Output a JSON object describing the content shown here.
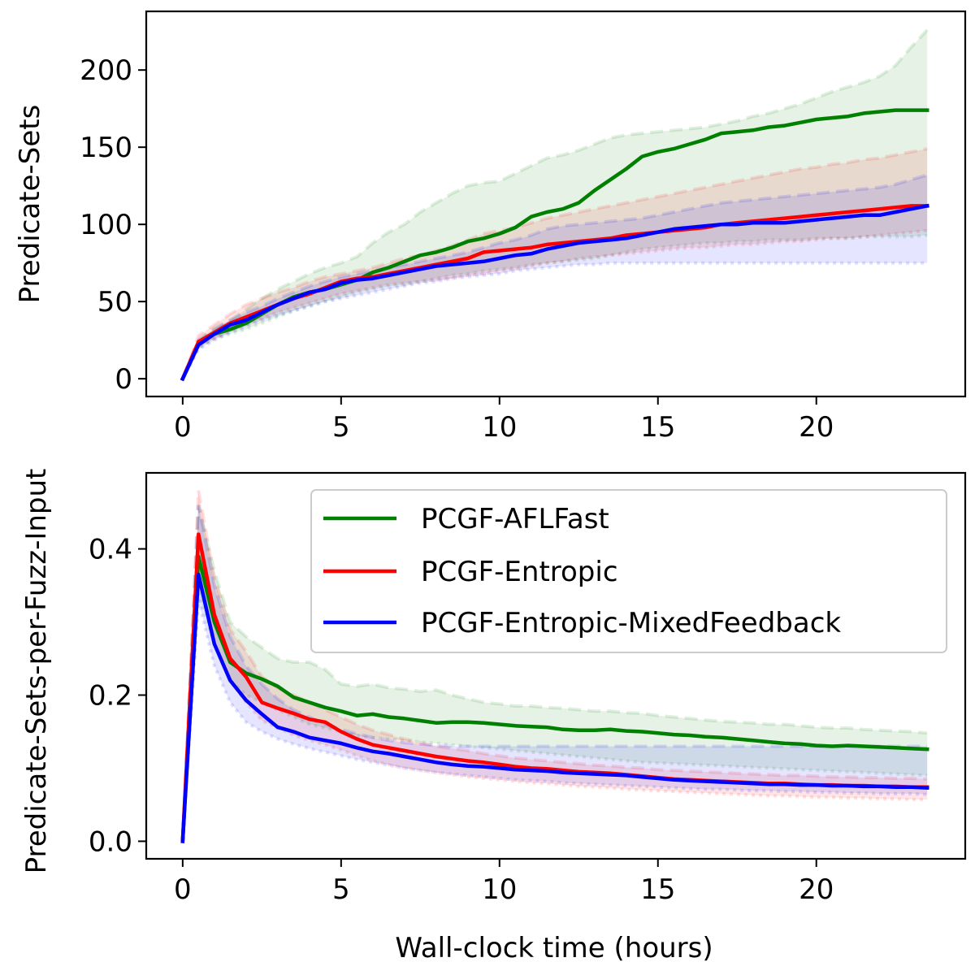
{
  "chart_data": [
    {
      "type": "line",
      "xlabel": "",
      "ylabel": "Predicate-Sets",
      "xlim": [
        -1.15,
        24.7
      ],
      "ylim": [
        -11.5,
        238
      ],
      "xticks": [
        0,
        5,
        10,
        15,
        20
      ],
      "xtick_labels": [
        "0",
        "5",
        "10",
        "15",
        "20"
      ],
      "yticks": [
        0,
        50,
        100,
        150,
        200
      ],
      "ytick_labels": [
        "0",
        "50",
        "100",
        "150",
        "200"
      ],
      "grid": false,
      "legend": "none",
      "x": [
        0,
        0.5,
        1,
        1.5,
        2,
        2.5,
        3,
        3.5,
        4,
        4.5,
        5,
        5.5,
        6,
        6.5,
        7,
        7.5,
        8,
        8.5,
        9,
        9.5,
        10,
        10.5,
        11,
        11.5,
        12,
        12.5,
        13,
        13.5,
        14,
        14.5,
        15,
        15.5,
        16,
        16.5,
        17,
        17.5,
        18,
        18.5,
        19,
        19.5,
        20,
        20.5,
        21,
        21.5,
        22,
        22.5,
        23,
        23.5
      ],
      "series": [
        {
          "name": "PCGF-AFLFast",
          "color": "#008000",
          "values": [
            0,
            23,
            29,
            32,
            36,
            42,
            48,
            53,
            56,
            58,
            61,
            64,
            69,
            72,
            76,
            80,
            82,
            85,
            89,
            91,
            94,
            98,
            105,
            108,
            110,
            114,
            122,
            129,
            136,
            144,
            147,
            149,
            152,
            155,
            159,
            160,
            161,
            163,
            164,
            166,
            168,
            169,
            170,
            172,
            173,
            174,
            174,
            174
          ],
          "upper": [
            0,
            25,
            33,
            38,
            45,
            52,
            58,
            63,
            68,
            72,
            75,
            79,
            88,
            95,
            100,
            108,
            114,
            120,
            125,
            127,
            128,
            133,
            138,
            143,
            145,
            148,
            152,
            156,
            158,
            159,
            160,
            161,
            162,
            163,
            165,
            167,
            170,
            172,
            175,
            178,
            182,
            186,
            189,
            192,
            196,
            203,
            215,
            226
          ],
          "lower": [
            0,
            20,
            26,
            29,
            32,
            36,
            40,
            44,
            47,
            50,
            53,
            56,
            58,
            60,
            61,
            63,
            65,
            67,
            68,
            70,
            71,
            72,
            74,
            75,
            76,
            77,
            78,
            80,
            82,
            84,
            85,
            86,
            87,
            88,
            88,
            89,
            89,
            90,
            90,
            90,
            91,
            91,
            91,
            92,
            92,
            92,
            92,
            93
          ]
        },
        {
          "name": "PCGF-Entropic",
          "color": "#ff0000",
          "values": [
            0,
            24,
            30,
            36,
            40,
            44,
            48,
            52,
            55,
            59,
            63,
            65,
            66,
            68,
            70,
            72,
            74,
            76,
            78,
            82,
            83,
            84,
            85,
            87,
            88,
            89,
            90,
            91,
            93,
            94,
            95,
            96,
            97,
            98,
            100,
            101,
            102,
            103,
            104,
            105,
            106,
            107,
            108,
            109,
            110,
            111,
            112,
            112
          ],
          "upper": [
            0,
            28,
            35,
            42,
            48,
            52,
            56,
            59,
            63,
            66,
            68,
            70,
            72,
            75,
            78,
            80,
            83,
            86,
            90,
            94,
            96,
            98,
            101,
            104,
            106,
            108,
            110,
            112,
            114,
            116,
            118,
            120,
            122,
            124,
            126,
            128,
            130,
            132,
            134,
            136,
            137,
            139,
            140,
            142,
            143,
            145,
            147,
            149
          ],
          "lower": [
            0,
            21,
            26,
            31,
            35,
            39,
            43,
            46,
            49,
            52,
            55,
            57,
            59,
            61,
            62,
            63,
            64,
            65,
            67,
            68,
            70,
            71,
            73,
            75,
            76,
            78,
            79,
            80,
            81,
            82,
            83,
            84,
            85,
            85,
            86,
            87,
            87,
            88,
            89,
            89,
            90,
            91,
            91,
            92,
            93,
            94,
            95,
            96
          ]
        },
        {
          "name": "PCGF-Entropic-MixedFeedback",
          "color": "#0000ff",
          "values": [
            0,
            22,
            29,
            35,
            38,
            43,
            48,
            52,
            56,
            58,
            62,
            64,
            65,
            67,
            69,
            71,
            73,
            74,
            75,
            76,
            78,
            80,
            81,
            84,
            86,
            88,
            89,
            90,
            91,
            93,
            95,
            97,
            98,
            99,
            100,
            100,
            101,
            101,
            101,
            102,
            103,
            104,
            105,
            106,
            106,
            108,
            110,
            112
          ],
          "upper": [
            0,
            25,
            32,
            38,
            43,
            47,
            52,
            56,
            60,
            63,
            66,
            68,
            70,
            72,
            74,
            76,
            78,
            80,
            82,
            85,
            88,
            90,
            93,
            97,
            99,
            100,
            101,
            102,
            103,
            104,
            106,
            108,
            110,
            112,
            114,
            115,
            116,
            117,
            118,
            119,
            120,
            121,
            122,
            123,
            124,
            126,
            129,
            132
          ],
          "lower": [
            0,
            19,
            25,
            30,
            34,
            38,
            41,
            44,
            47,
            50,
            52,
            54,
            56,
            58,
            60,
            62,
            63,
            65,
            66,
            67,
            68,
            70,
            71,
            72,
            73,
            74,
            74,
            75,
            75,
            75,
            75,
            75,
            75,
            75,
            75,
            75,
            75,
            75,
            75,
            75,
            75,
            75,
            75,
            75,
            75,
            75,
            75,
            75
          ]
        }
      ]
    },
    {
      "type": "line",
      "xlabel": "Wall-clock time (hours)",
      "ylabel": "Predicate-Sets-per-Fuzz-Input",
      "xlim": [
        -1.15,
        24.7
      ],
      "ylim": [
        -0.024,
        0.504
      ],
      "xticks": [
        0,
        5,
        10,
        15,
        20
      ],
      "xtick_labels": [
        "0",
        "5",
        "10",
        "15",
        "20"
      ],
      "yticks": [
        0,
        0.2,
        0.4
      ],
      "ytick_labels": [
        "0.0",
        "0.2",
        "0.4"
      ],
      "grid": false,
      "legend": "top-right",
      "x": [
        0,
        0.5,
        1,
        1.5,
        2,
        2.5,
        3,
        3.5,
        4,
        4.5,
        5,
        5.5,
        6,
        6.5,
        7,
        7.5,
        8,
        8.5,
        9,
        9.5,
        10,
        10.5,
        11,
        11.5,
        12,
        12.5,
        13,
        13.5,
        14,
        14.5,
        15,
        15.5,
        16,
        16.5,
        17,
        17.5,
        18,
        18.5,
        19,
        19.5,
        20,
        20.5,
        21,
        21.5,
        22,
        22.5,
        23,
        23.5
      ],
      "series": [
        {
          "name": "PCGF-AFLFast",
          "color": "#008000",
          "values": [
            0,
            0.39,
            0.3,
            0.245,
            0.23,
            0.222,
            0.212,
            0.197,
            0.19,
            0.183,
            0.178,
            0.172,
            0.174,
            0.17,
            0.168,
            0.165,
            0.162,
            0.163,
            0.163,
            0.162,
            0.16,
            0.158,
            0.157,
            0.156,
            0.153,
            0.152,
            0.152,
            0.153,
            0.151,
            0.15,
            0.148,
            0.146,
            0.145,
            0.143,
            0.142,
            0.14,
            0.138,
            0.136,
            0.134,
            0.133,
            0.131,
            0.13,
            0.131,
            0.13,
            0.129,
            0.128,
            0.127,
            0.126
          ],
          "upper": [
            0,
            0.46,
            0.37,
            0.3,
            0.28,
            0.265,
            0.25,
            0.245,
            0.245,
            0.235,
            0.215,
            0.212,
            0.215,
            0.21,
            0.208,
            0.205,
            0.207,
            0.2,
            0.195,
            0.19,
            0.188,
            0.185,
            0.185,
            0.183,
            0.182,
            0.18,
            0.178,
            0.178,
            0.176,
            0.175,
            0.172,
            0.17,
            0.168,
            0.166,
            0.164,
            0.163,
            0.162,
            0.16,
            0.16,
            0.158,
            0.156,
            0.155,
            0.155,
            0.153,
            0.152,
            0.151,
            0.15,
            0.148
          ],
          "lower": [
            0,
            0.34,
            0.27,
            0.22,
            0.2,
            0.19,
            0.18,
            0.17,
            0.16,
            0.155,
            0.15,
            0.145,
            0.142,
            0.14,
            0.138,
            0.136,
            0.134,
            0.132,
            0.13,
            0.128,
            0.126,
            0.124,
            0.122,
            0.12,
            0.118,
            0.116,
            0.114,
            0.112,
            0.11,
            0.108,
            0.107,
            0.106,
            0.105,
            0.104,
            0.103,
            0.102,
            0.101,
            0.1,
            0.099,
            0.098,
            0.097,
            0.096,
            0.095,
            0.094,
            0.093,
            0.092,
            0.091,
            0.09
          ]
        },
        {
          "name": "PCGF-Entropic",
          "color": "#ff0000",
          "values": [
            0,
            0.42,
            0.31,
            0.25,
            0.225,
            0.19,
            0.182,
            0.175,
            0.167,
            0.163,
            0.15,
            0.14,
            0.132,
            0.128,
            0.124,
            0.12,
            0.116,
            0.113,
            0.11,
            0.108,
            0.105,
            0.102,
            0.1,
            0.099,
            0.097,
            0.095,
            0.094,
            0.093,
            0.091,
            0.089,
            0.087,
            0.085,
            0.084,
            0.083,
            0.082,
            0.081,
            0.08,
            0.079,
            0.079,
            0.078,
            0.077,
            0.077,
            0.076,
            0.076,
            0.075,
            0.075,
            0.074,
            0.074
          ],
          "upper": [
            0,
            0.48,
            0.36,
            0.29,
            0.26,
            0.225,
            0.21,
            0.2,
            0.19,
            0.18,
            0.17,
            0.16,
            0.152,
            0.146,
            0.14,
            0.135,
            0.13,
            0.127,
            0.124,
            0.12,
            0.117,
            0.114,
            0.112,
            0.11,
            0.108,
            0.106,
            0.104,
            0.103,
            0.101,
            0.1,
            0.098,
            0.097,
            0.096,
            0.095,
            0.094,
            0.093,
            0.092,
            0.091,
            0.09,
            0.09,
            0.089,
            0.088,
            0.088,
            0.087,
            0.087,
            0.086,
            0.086,
            0.085
          ],
          "lower": [
            0,
            0.37,
            0.27,
            0.22,
            0.19,
            0.165,
            0.155,
            0.145,
            0.138,
            0.132,
            0.125,
            0.117,
            0.11,
            0.105,
            0.1,
            0.097,
            0.094,
            0.091,
            0.088,
            0.086,
            0.084,
            0.082,
            0.08,
            0.079,
            0.077,
            0.075,
            0.074,
            0.073,
            0.071,
            0.07,
            0.069,
            0.068,
            0.067,
            0.066,
            0.065,
            0.064,
            0.063,
            0.062,
            0.062,
            0.061,
            0.06,
            0.06,
            0.059,
            0.059,
            0.058,
            0.058,
            0.057,
            0.057
          ]
        },
        {
          "name": "PCGF-Entropic-MixedFeedback",
          "color": "#0000ff",
          "values": [
            0,
            0.365,
            0.27,
            0.22,
            0.193,
            0.174,
            0.156,
            0.15,
            0.142,
            0.138,
            0.134,
            0.128,
            0.123,
            0.12,
            0.116,
            0.112,
            0.108,
            0.105,
            0.103,
            0.102,
            0.1,
            0.098,
            0.097,
            0.096,
            0.094,
            0.093,
            0.092,
            0.091,
            0.09,
            0.088,
            0.086,
            0.084,
            0.083,
            0.082,
            0.081,
            0.08,
            0.079,
            0.078,
            0.078,
            0.077,
            0.077,
            0.076,
            0.076,
            0.075,
            0.075,
            0.074,
            0.074,
            0.073
          ],
          "upper": [
            0,
            0.46,
            0.35,
            0.28,
            0.24,
            0.215,
            0.195,
            0.18,
            0.17,
            0.16,
            0.153,
            0.147,
            0.142,
            0.138,
            0.135,
            0.133,
            0.131,
            0.13,
            0.13,
            0.13,
            0.13,
            0.13,
            0.13,
            0.13,
            0.13,
            0.13,
            0.13,
            0.13,
            0.13,
            0.13,
            0.13,
            0.13,
            0.13,
            0.13,
            0.13,
            0.13,
            0.13,
            0.13,
            0.13,
            0.13,
            0.13,
            0.13,
            0.13,
            0.13,
            0.13,
            0.13,
            0.13,
            0.13
          ],
          "lower": [
            0,
            0.33,
            0.24,
            0.19,
            0.163,
            0.15,
            0.14,
            0.133,
            0.127,
            0.122,
            0.117,
            0.112,
            0.108,
            0.104,
            0.1,
            0.097,
            0.094,
            0.092,
            0.09,
            0.088,
            0.086,
            0.084,
            0.083,
            0.082,
            0.08,
            0.079,
            0.078,
            0.077,
            0.076,
            0.075,
            0.074,
            0.073,
            0.072,
            0.071,
            0.071,
            0.07,
            0.069,
            0.069,
            0.068,
            0.068,
            0.067,
            0.067,
            0.066,
            0.066,
            0.065,
            0.065,
            0.065,
            0.064
          ]
        }
      ]
    }
  ]
}
